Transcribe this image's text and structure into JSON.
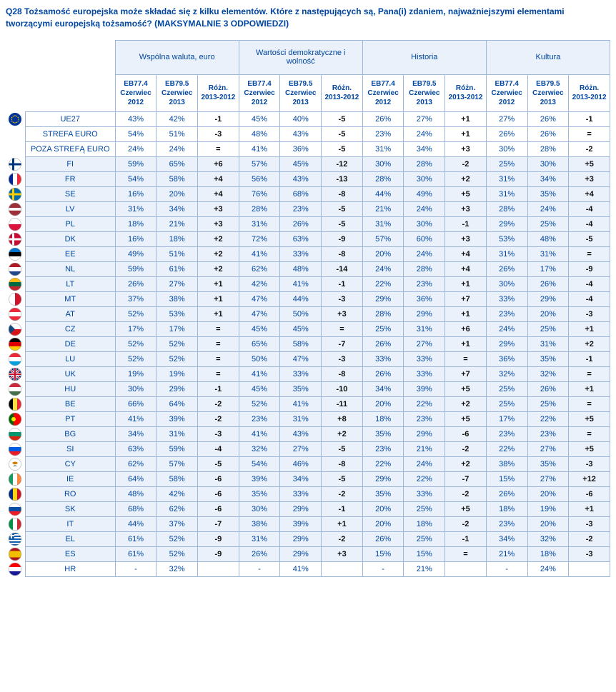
{
  "question": "Q28 Tożsamość europejska może składać się z kilku elementów. Które z następujących są, Pana(i) zdaniem, najważniejszymi elementami tworzącymi europejską tożsamość? (MAKSYMALNIE 3 ODPOWIEDZI)",
  "columnGroups": [
    "Wspólna waluta, euro",
    "Wartości demokratyczne i wolność",
    "Historia",
    "Kultura"
  ],
  "subHeaders": [
    "EB77.4 Czerwiec 2012",
    "EB79.5 Czerwiec 2013",
    "Różn. 2013-2012"
  ],
  "aggregateRows": [
    {
      "flag": "EU",
      "label": "UE27",
      "cells": [
        "43%",
        "42%",
        "-1",
        "45%",
        "40%",
        "-5",
        "26%",
        "27%",
        "+1",
        "27%",
        "26%",
        "-1"
      ]
    },
    {
      "flag": "",
      "label": "STREFA EURO",
      "cells": [
        "54%",
        "51%",
        "-3",
        "48%",
        "43%",
        "-5",
        "23%",
        "24%",
        "+1",
        "26%",
        "26%",
        "="
      ]
    },
    {
      "flag": "",
      "label": "POZA STREFĄ EURO",
      "cells": [
        "24%",
        "24%",
        "=",
        "41%",
        "36%",
        "-5",
        "31%",
        "34%",
        "+3",
        "30%",
        "28%",
        "-2"
      ]
    }
  ],
  "countryRows": [
    {
      "flag": "FI",
      "label": "FI",
      "cells": [
        "59%",
        "65%",
        "+6",
        "57%",
        "45%",
        "-12",
        "30%",
        "28%",
        "-2",
        "25%",
        "30%",
        "+5"
      ]
    },
    {
      "flag": "FR",
      "label": "FR",
      "cells": [
        "54%",
        "58%",
        "+4",
        "56%",
        "43%",
        "-13",
        "28%",
        "30%",
        "+2",
        "31%",
        "34%",
        "+3"
      ]
    },
    {
      "flag": "SE",
      "label": "SE",
      "cells": [
        "16%",
        "20%",
        "+4",
        "76%",
        "68%",
        "-8",
        "44%",
        "49%",
        "+5",
        "31%",
        "35%",
        "+4"
      ]
    },
    {
      "flag": "LV",
      "label": "LV",
      "cells": [
        "31%",
        "34%",
        "+3",
        "28%",
        "23%",
        "-5",
        "21%",
        "24%",
        "+3",
        "28%",
        "24%",
        "-4"
      ]
    },
    {
      "flag": "PL",
      "label": "PL",
      "cells": [
        "18%",
        "21%",
        "+3",
        "31%",
        "26%",
        "-5",
        "31%",
        "30%",
        "-1",
        "29%",
        "25%",
        "-4"
      ]
    },
    {
      "flag": "DK",
      "label": "DK",
      "cells": [
        "16%",
        "18%",
        "+2",
        "72%",
        "63%",
        "-9",
        "57%",
        "60%",
        "+3",
        "53%",
        "48%",
        "-5"
      ]
    },
    {
      "flag": "EE",
      "label": "EE",
      "cells": [
        "49%",
        "51%",
        "+2",
        "41%",
        "33%",
        "-8",
        "20%",
        "24%",
        "+4",
        "31%",
        "31%",
        "="
      ]
    },
    {
      "flag": "NL",
      "label": "NL",
      "cells": [
        "59%",
        "61%",
        "+2",
        "62%",
        "48%",
        "-14",
        "24%",
        "28%",
        "+4",
        "26%",
        "17%",
        "-9"
      ]
    },
    {
      "flag": "LT",
      "label": "LT",
      "cells": [
        "26%",
        "27%",
        "+1",
        "42%",
        "41%",
        "-1",
        "22%",
        "23%",
        "+1",
        "30%",
        "26%",
        "-4"
      ]
    },
    {
      "flag": "MT",
      "label": "MT",
      "cells": [
        "37%",
        "38%",
        "+1",
        "47%",
        "44%",
        "-3",
        "29%",
        "36%",
        "+7",
        "33%",
        "29%",
        "-4"
      ]
    },
    {
      "flag": "AT",
      "label": "AT",
      "cells": [
        "52%",
        "53%",
        "+1",
        "47%",
        "50%",
        "+3",
        "28%",
        "29%",
        "+1",
        "23%",
        "20%",
        "-3"
      ]
    },
    {
      "flag": "CZ",
      "label": "CZ",
      "cells": [
        "17%",
        "17%",
        "=",
        "45%",
        "45%",
        "=",
        "25%",
        "31%",
        "+6",
        "24%",
        "25%",
        "+1"
      ]
    },
    {
      "flag": "DE",
      "label": "DE",
      "cells": [
        "52%",
        "52%",
        "=",
        "65%",
        "58%",
        "-7",
        "26%",
        "27%",
        "+1",
        "29%",
        "31%",
        "+2"
      ]
    },
    {
      "flag": "LU",
      "label": "LU",
      "cells": [
        "52%",
        "52%",
        "=",
        "50%",
        "47%",
        "-3",
        "33%",
        "33%",
        "=",
        "36%",
        "35%",
        "-1"
      ]
    },
    {
      "flag": "UK",
      "label": "UK",
      "cells": [
        "19%",
        "19%",
        "=",
        "41%",
        "33%",
        "-8",
        "26%",
        "33%",
        "+7",
        "32%",
        "32%",
        "="
      ]
    },
    {
      "flag": "HU",
      "label": "HU",
      "cells": [
        "30%",
        "29%",
        "-1",
        "45%",
        "35%",
        "-10",
        "34%",
        "39%",
        "+5",
        "25%",
        "26%",
        "+1"
      ]
    },
    {
      "flag": "BE",
      "label": "BE",
      "cells": [
        "66%",
        "64%",
        "-2",
        "52%",
        "41%",
        "-11",
        "20%",
        "22%",
        "+2",
        "25%",
        "25%",
        "="
      ]
    },
    {
      "flag": "PT",
      "label": "PT",
      "cells": [
        "41%",
        "39%",
        "-2",
        "23%",
        "31%",
        "+8",
        "18%",
        "23%",
        "+5",
        "17%",
        "22%",
        "+5"
      ]
    },
    {
      "flag": "BG",
      "label": "BG",
      "cells": [
        "34%",
        "31%",
        "-3",
        "41%",
        "43%",
        "+2",
        "35%",
        "29%",
        "-6",
        "23%",
        "23%",
        "="
      ]
    },
    {
      "flag": "SI",
      "label": "SI",
      "cells": [
        "63%",
        "59%",
        "-4",
        "32%",
        "27%",
        "-5",
        "23%",
        "21%",
        "-2",
        "22%",
        "27%",
        "+5"
      ]
    },
    {
      "flag": "CY",
      "label": "CY",
      "cells": [
        "62%",
        "57%",
        "-5",
        "54%",
        "46%",
        "-8",
        "22%",
        "24%",
        "+2",
        "38%",
        "35%",
        "-3"
      ]
    },
    {
      "flag": "IE",
      "label": "IE",
      "cells": [
        "64%",
        "58%",
        "-6",
        "39%",
        "34%",
        "-5",
        "29%",
        "22%",
        "-7",
        "15%",
        "27%",
        "+12"
      ]
    },
    {
      "flag": "RO",
      "label": "RO",
      "cells": [
        "48%",
        "42%",
        "-6",
        "35%",
        "33%",
        "-2",
        "35%",
        "33%",
        "-2",
        "26%",
        "20%",
        "-6"
      ]
    },
    {
      "flag": "SK",
      "label": "SK",
      "cells": [
        "68%",
        "62%",
        "-6",
        "30%",
        "29%",
        "-1",
        "20%",
        "25%",
        "+5",
        "18%",
        "19%",
        "+1"
      ]
    },
    {
      "flag": "IT",
      "label": "IT",
      "cells": [
        "44%",
        "37%",
        "-7",
        "38%",
        "39%",
        "+1",
        "20%",
        "18%",
        "-2",
        "23%",
        "20%",
        "-3"
      ]
    },
    {
      "flag": "EL",
      "label": "EL",
      "cells": [
        "61%",
        "52%",
        "-9",
        "31%",
        "29%",
        "-2",
        "26%",
        "25%",
        "-1",
        "34%",
        "32%",
        "-2"
      ]
    },
    {
      "flag": "ES",
      "label": "ES",
      "cells": [
        "61%",
        "52%",
        "-9",
        "26%",
        "29%",
        "+3",
        "15%",
        "15%",
        "=",
        "21%",
        "18%",
        "-3"
      ]
    },
    {
      "flag": "HR",
      "label": "HR",
      "cells": [
        "-",
        "32%",
        "",
        "-",
        "41%",
        "",
        "-",
        "21%",
        "",
        "-",
        "24%",
        ""
      ]
    }
  ],
  "flagSVG": {
    "EU": {
      "bg": "#003399",
      "fg": "#ffcc00",
      "type": "eu"
    },
    "FI": {
      "bars": [
        [
          "#ffffff",
          "#003580",
          "#ffffff"
        ],
        "cross"
      ]
    },
    "FR": {
      "v": [
        "#002395",
        "#ffffff",
        "#ed2939"
      ]
    },
    "SE": {
      "bg": "#006aa7",
      "cross": "#fecc00"
    },
    "LV": {
      "h": [
        "#9e3039",
        "#ffffff",
        "#9e3039"
      ],
      "ratios": [
        2,
        1,
        2
      ]
    },
    "PL": {
      "h": [
        "#ffffff",
        "#dc143c"
      ]
    },
    "DK": {
      "bg": "#c60c30",
      "cross": "#ffffff"
    },
    "EE": {
      "h": [
        "#0072ce",
        "#000000",
        "#ffffff"
      ]
    },
    "NL": {
      "h": [
        "#ae1c28",
        "#ffffff",
        "#21468b"
      ]
    },
    "LT": {
      "h": [
        "#fdb913",
        "#006a44",
        "#c1272d"
      ]
    },
    "MT": {
      "v": [
        "#ffffff",
        "#cf142b"
      ]
    },
    "AT": {
      "h": [
        "#ed2939",
        "#ffffff",
        "#ed2939"
      ]
    },
    "CZ": {
      "type": "cz"
    },
    "DE": {
      "h": [
        "#000000",
        "#dd0000",
        "#ffce00"
      ]
    },
    "LU": {
      "h": [
        "#ed2939",
        "#ffffff",
        "#00a1de"
      ]
    },
    "UK": {
      "type": "uk"
    },
    "HU": {
      "h": [
        "#cd2a3e",
        "#ffffff",
        "#436f4d"
      ]
    },
    "BE": {
      "v": [
        "#000000",
        "#fae042",
        "#ed2939"
      ]
    },
    "PT": {
      "type": "pt"
    },
    "BG": {
      "h": [
        "#ffffff",
        "#00966e",
        "#d62612"
      ]
    },
    "SI": {
      "h": [
        "#ffffff",
        "#005ce5",
        "#ed1c24"
      ]
    },
    "CY": {
      "type": "cy"
    },
    "IE": {
      "v": [
        "#169b62",
        "#ffffff",
        "#ff883e"
      ]
    },
    "RO": {
      "v": [
        "#002b7f",
        "#fcd116",
        "#ce1126"
      ]
    },
    "SK": {
      "h": [
        "#ffffff",
        "#0b4ea2",
        "#ee1c25"
      ]
    },
    "IT": {
      "v": [
        "#009246",
        "#ffffff",
        "#ce2b37"
      ]
    },
    "EL": {
      "type": "el"
    },
    "ES": {
      "h": [
        "#aa151b",
        "#f1bf00",
        "#aa151b"
      ],
      "ratios": [
        1,
        2,
        1
      ]
    },
    "HR": {
      "h": [
        "#ff0000",
        "#ffffff",
        "#171796"
      ]
    }
  }
}
